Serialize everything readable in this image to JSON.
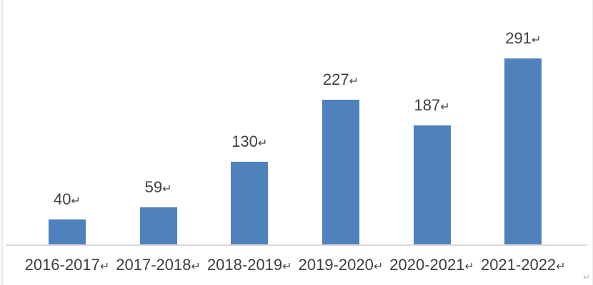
{
  "chart_data": {
    "type": "bar",
    "categories": [
      "2016-2017",
      "2017-2018",
      "2018-2019",
      "2019-2020",
      "2020-2021",
      "2021-2022"
    ],
    "values": [
      40,
      59,
      130,
      227,
      187,
      291
    ],
    "data_labels": [
      "40",
      "59",
      "130",
      "227",
      "187",
      "291"
    ],
    "title": "",
    "xlabel": "",
    "ylabel": "",
    "ylim": [
      0,
      320
    ],
    "grid": false,
    "legend": false,
    "bar_color": "#4f81bd",
    "axis_line_color": "#d9d9d9",
    "text_color": "#3f3f3f",
    "paragraph_mark": "↵"
  },
  "page": {
    "background": "#ffffff",
    "corner_mark": "↵"
  }
}
